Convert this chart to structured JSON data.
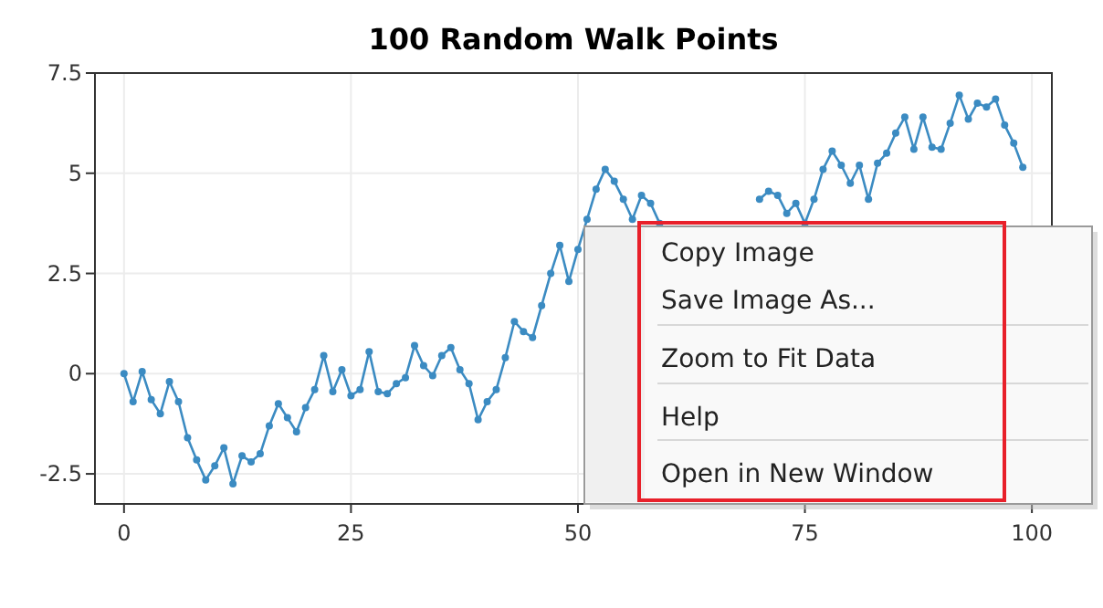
{
  "chart_data": {
    "type": "line",
    "title": "100 Random Walk Points",
    "x": [
      0,
      1,
      2,
      3,
      4,
      5,
      6,
      7,
      8,
      9,
      10,
      11,
      12,
      13,
      14,
      15,
      16,
      17,
      18,
      19,
      20,
      21,
      22,
      23,
      24,
      25,
      26,
      27,
      28,
      29,
      30,
      31,
      32,
      33,
      34,
      35,
      36,
      37,
      38,
      39,
      40,
      41,
      42,
      43,
      44,
      45,
      46,
      47,
      48,
      49,
      50,
      51,
      52,
      53,
      54,
      55,
      56,
      57,
      58,
      59,
      60,
      61,
      62,
      63,
      64,
      65,
      66,
      67,
      68,
      69,
      70,
      71,
      72,
      73,
      74,
      75,
      76,
      77,
      78,
      79,
      80,
      81,
      82,
      83,
      84,
      85,
      86,
      87,
      88,
      89,
      90,
      91,
      92,
      93,
      94,
      95,
      96,
      97,
      98,
      99
    ],
    "series": [
      {
        "color": "#3b8bc2",
        "values": [
          0,
          -0.7,
          0.05,
          -0.65,
          -1.0,
          -0.2,
          -0.7,
          -1.6,
          -2.15,
          -2.65,
          -2.3,
          -1.85,
          -2.75,
          -2.05,
          -2.2,
          -2.0,
          -1.3,
          -0.75,
          -1.1,
          -1.45,
          -0.85,
          -0.4,
          0.45,
          -0.45,
          0.1,
          -0.55,
          -0.4,
          0.55,
          -0.45,
          -0.5,
          -0.25,
          -0.1,
          0.7,
          0.2,
          -0.05,
          0.45,
          0.65,
          0.1,
          -0.25,
          -1.15,
          -0.7,
          -0.4,
          0.4,
          1.3,
          1.05,
          0.9,
          1.7,
          2.5,
          3.2,
          2.3,
          3.1,
          3.85,
          4.6,
          5.1,
          4.8,
          4.35,
          3.85,
          4.45,
          4.25,
          3.75,
          null,
          null,
          null,
          null,
          null,
          null,
          null,
          null,
          null,
          null,
          4.35,
          4.55,
          4.45,
          4.0,
          4.25,
          3.75,
          4.35,
          5.1,
          5.55,
          5.2,
          4.75,
          5.2,
          4.35,
          5.25,
          5.5,
          6.0,
          6.4,
          5.6,
          6.4,
          5.65,
          5.6,
          6.25,
          6.95,
          6.35,
          6.75,
          6.65,
          6.85,
          6.2,
          5.75,
          5.15
        ]
      }
    ],
    "xlim": [
      -3.2,
      102.2
    ],
    "ylim": [
      -3.25,
      7.5
    ],
    "xticks": [
      0,
      25,
      50,
      75,
      100
    ],
    "yticks": [
      -2.5,
      0,
      2.5,
      5,
      7.5
    ],
    "grid": true,
    "marker": "circle",
    "line_style": "solid",
    "annotations": [
      "Copy Image",
      "Save Image As...",
      "Zoom to Fit Data",
      "Help",
      "Open in New Window"
    ]
  }
}
